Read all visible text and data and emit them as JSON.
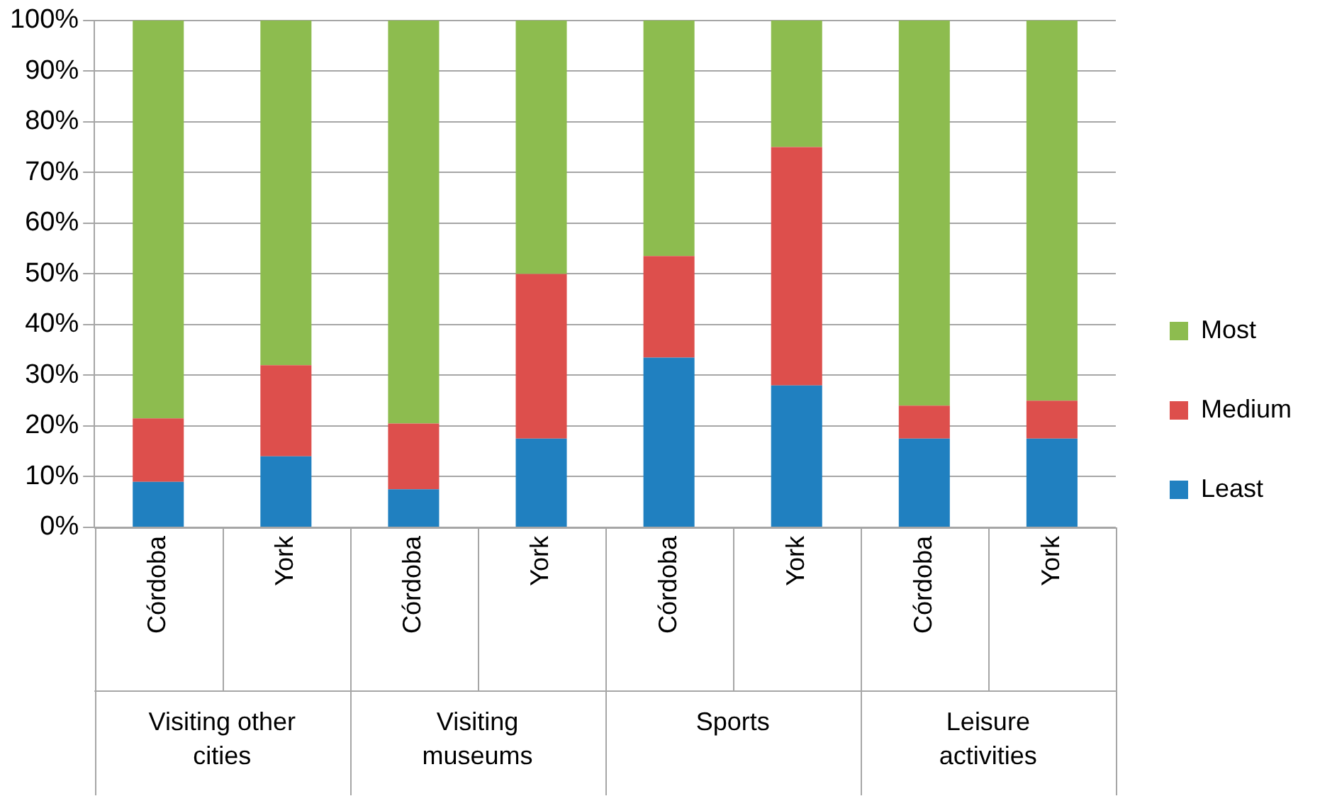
{
  "chart_data": {
    "type": "bar",
    "stacked": true,
    "categories": [
      "Córdoba",
      "York",
      "Córdoba",
      "York",
      "Córdoba",
      "York",
      "Córdoba",
      "York"
    ],
    "annotations": [
      "Visiting other cities",
      "Visiting museums",
      "Sports",
      "Leisure activities"
    ],
    "series": [
      {
        "name": "Least",
        "color": "#2080c0",
        "values": [
          9,
          14,
          7.5,
          17.5,
          33.5,
          28,
          17.5,
          17.5
        ]
      },
      {
        "name": "Medium",
        "color": "#dd4f4c",
        "values": [
          12.5,
          18,
          13,
          32.5,
          20,
          47,
          6.5,
          7.5
        ]
      },
      {
        "name": "Most",
        "color": "#8dbc4f",
        "values": [
          78.5,
          68,
          79.5,
          50,
          46.5,
          25,
          76,
          75
        ]
      }
    ],
    "ylim": [
      0,
      100
    ],
    "yticks": [
      {
        "value": 0,
        "label": "0%"
      },
      {
        "value": 10,
        "label": "10%"
      },
      {
        "value": 20,
        "label": "20%"
      },
      {
        "value": 30,
        "label": "30%"
      },
      {
        "value": 40,
        "label": "40%"
      },
      {
        "value": 50,
        "label": "50%"
      },
      {
        "value": 60,
        "label": "60%"
      },
      {
        "value": 70,
        "label": "70%"
      },
      {
        "value": 80,
        "label": "80%"
      },
      {
        "value": 90,
        "label": "90%"
      },
      {
        "value": 100,
        "label": "100%"
      }
    ],
    "grid": "y",
    "legend": "right"
  }
}
